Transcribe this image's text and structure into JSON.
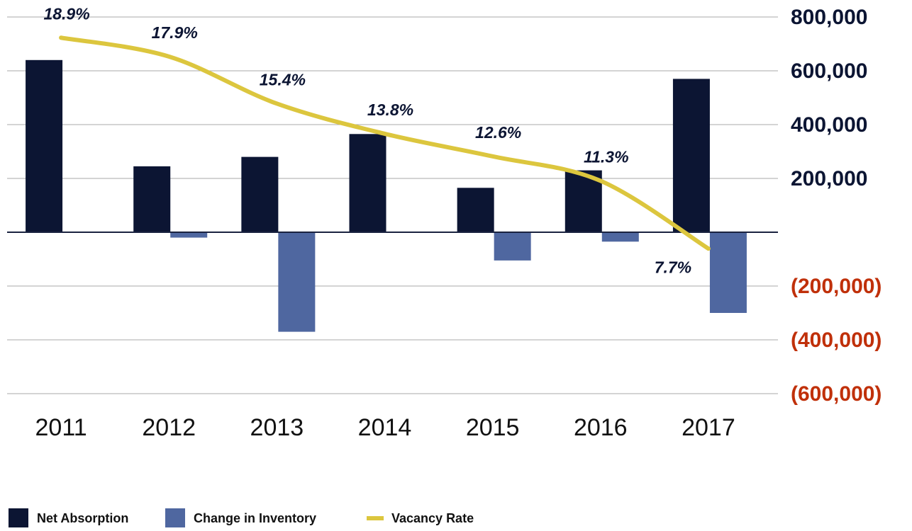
{
  "chart_data": {
    "type": "bar",
    "categories": [
      "2011",
      "2012",
      "2013",
      "2014",
      "2015",
      "2016",
      "2017"
    ],
    "series": [
      {
        "name": "Net Absorption",
        "color": "#0c1533",
        "values": [
          640000,
          245000,
          280000,
          365000,
          165000,
          230000,
          570000
        ]
      },
      {
        "name": "Change in Inventory",
        "color": "#4f67a0",
        "values": [
          0,
          -20000,
          -370000,
          0,
          -105000,
          -35000,
          -300000
        ]
      },
      {
        "name": "Vacancy Rate",
        "type": "line",
        "axis": "y2",
        "color": "#dcc63e",
        "values": [
          18.9,
          17.9,
          15.4,
          13.8,
          12.6,
          11.3,
          7.7
        ],
        "value_labels": [
          "18.9%",
          "17.9%",
          "15.4%",
          "13.8%",
          "12.6%",
          "11.3%",
          "7.7%"
        ]
      }
    ],
    "ylim": [
      -600000,
      800000
    ],
    "yticks": [
      {
        "value": 800000,
        "label": "800,000"
      },
      {
        "value": 600000,
        "label": "600,000"
      },
      {
        "value": 400000,
        "label": "400,000"
      },
      {
        "value": 200000,
        "label": "200,000"
      },
      {
        "value": -200000,
        "label": "(200,000)"
      },
      {
        "value": -400000,
        "label": "(400,000)"
      },
      {
        "value": -600000,
        "label": "(600,000)"
      }
    ],
    "y2lim": [
      0,
      20
    ],
    "grid": true,
    "ytick_color": "#0c1533",
    "ytick_negative_color": "#c0300a",
    "legend": "bottom"
  }
}
